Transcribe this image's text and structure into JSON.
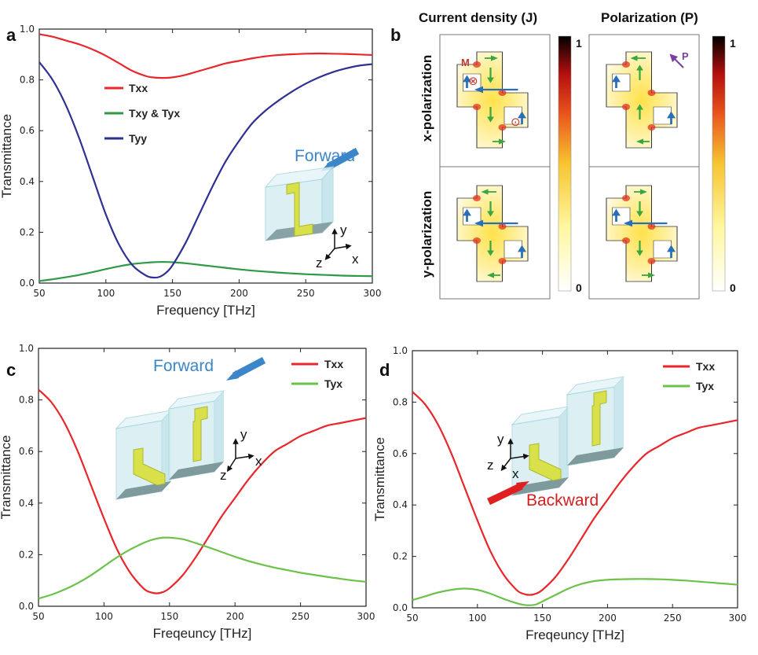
{
  "panel_labels": [
    "a",
    "b",
    "c",
    "d"
  ],
  "colors": {
    "txx": "#e8262b",
    "txy_tyx_a": "#2e9a44",
    "tyy": "#2e3192",
    "tyx_cd": "#6cc24a",
    "forward_arrow": "#3a86c8",
    "backward_arrow": "#e02020",
    "field_arrow_blue": "#2a6fb5",
    "field_arrow_green": "#3aa640",
    "marker_red": "#c0392b",
    "p_arrow": "#7b3fa0",
    "structure_yellow": "#d8e04a",
    "box_fill": "#cfe8ee"
  },
  "chart_data": [
    {
      "panel": "a",
      "type": "line",
      "xlabel": "Frequency [THz]",
      "ylabel": "Transmittance",
      "xlim": [
        50,
        300
      ],
      "ylim": [
        0,
        1.0
      ],
      "xticks": [
        "50",
        "100",
        "150",
        "200",
        "250",
        "300"
      ],
      "yticks": [
        "0.0",
        "0.2",
        "0.4",
        "0.6",
        "0.8",
        "1.0"
      ],
      "x": [
        50,
        60,
        70,
        80,
        90,
        100,
        110,
        120,
        130,
        135,
        140,
        145,
        150,
        160,
        170,
        180,
        190,
        200,
        210,
        220,
        230,
        240,
        250,
        260,
        270,
        280,
        290,
        300
      ],
      "series": [
        {
          "name": "Txx",
          "color_key": "txx",
          "values": [
            0.98,
            0.97,
            0.955,
            0.94,
            0.92,
            0.895,
            0.865,
            0.835,
            0.815,
            0.81,
            0.808,
            0.808,
            0.81,
            0.82,
            0.835,
            0.85,
            0.865,
            0.875,
            0.885,
            0.893,
            0.898,
            0.901,
            0.903,
            0.904,
            0.903,
            0.902,
            0.9,
            0.898
          ]
        },
        {
          "name": "Txy & Tyx",
          "color_key": "txy_tyx_a",
          "values": [
            0.008,
            0.015,
            0.023,
            0.032,
            0.043,
            0.055,
            0.066,
            0.075,
            0.08,
            0.082,
            0.083,
            0.083,
            0.082,
            0.078,
            0.072,
            0.066,
            0.06,
            0.054,
            0.049,
            0.045,
            0.041,
            0.038,
            0.035,
            0.033,
            0.031,
            0.029,
            0.028,
            0.027
          ]
        },
        {
          "name": "Tyy",
          "color_key": "tyy",
          "values": [
            0.87,
            0.8,
            0.7,
            0.57,
            0.42,
            0.27,
            0.15,
            0.07,
            0.03,
            0.022,
            0.024,
            0.04,
            0.07,
            0.16,
            0.27,
            0.38,
            0.48,
            0.56,
            0.63,
            0.68,
            0.72,
            0.755,
            0.785,
            0.81,
            0.83,
            0.845,
            0.856,
            0.862
          ]
        }
      ],
      "annotation": "Forward",
      "axes_letters": [
        "y",
        "z",
        "x"
      ]
    },
    {
      "panel": "c",
      "type": "line",
      "xlabel": "Freqeuncy [THz]",
      "ylabel": "Transmittance",
      "xlim": [
        50,
        300
      ],
      "ylim": [
        0,
        1.0
      ],
      "xticks": [
        "50",
        "100",
        "150",
        "200",
        "250",
        "300"
      ],
      "yticks": [
        "0.0",
        "0.2",
        "0.4",
        "0.6",
        "0.8",
        "1.0"
      ],
      "x": [
        50,
        60,
        70,
        80,
        90,
        100,
        110,
        120,
        130,
        135,
        140,
        145,
        150,
        160,
        170,
        180,
        190,
        200,
        210,
        220,
        230,
        240,
        250,
        260,
        270,
        280,
        290,
        300
      ],
      "series": [
        {
          "name": "Txx",
          "color_key": "txx",
          "values": [
            0.84,
            0.79,
            0.71,
            0.6,
            0.47,
            0.34,
            0.22,
            0.13,
            0.07,
            0.055,
            0.05,
            0.055,
            0.07,
            0.12,
            0.19,
            0.27,
            0.35,
            0.42,
            0.49,
            0.55,
            0.6,
            0.63,
            0.66,
            0.68,
            0.7,
            0.71,
            0.72,
            0.73
          ]
        },
        {
          "name": "Tyx",
          "color_key": "tyx_cd",
          "values": [
            0.03,
            0.045,
            0.065,
            0.09,
            0.12,
            0.155,
            0.19,
            0.22,
            0.245,
            0.255,
            0.262,
            0.266,
            0.266,
            0.26,
            0.245,
            0.228,
            0.21,
            0.192,
            0.176,
            0.162,
            0.15,
            0.14,
            0.13,
            0.122,
            0.114,
            0.107,
            0.1,
            0.095
          ]
        }
      ],
      "annotation": "Forward",
      "axes_letters": [
        "y",
        "z",
        "x"
      ]
    },
    {
      "panel": "d",
      "type": "line",
      "xlabel": "Freqeuncy [THz]",
      "ylabel": "Transmittance",
      "xlim": [
        50,
        300
      ],
      "ylim": [
        0,
        1.0
      ],
      "xticks": [
        "50",
        "100",
        "150",
        "200",
        "250",
        "300"
      ],
      "yticks": [
        "0.0",
        "0.2",
        "0.4",
        "0.6",
        "0.8",
        "1.0"
      ],
      "x": [
        50,
        60,
        70,
        80,
        90,
        100,
        110,
        120,
        130,
        135,
        140,
        145,
        150,
        160,
        170,
        180,
        190,
        200,
        210,
        220,
        230,
        240,
        250,
        260,
        270,
        280,
        290,
        300
      ],
      "series": [
        {
          "name": "Txx",
          "color_key": "txx",
          "values": [
            0.84,
            0.79,
            0.71,
            0.6,
            0.47,
            0.34,
            0.22,
            0.13,
            0.07,
            0.055,
            0.05,
            0.055,
            0.07,
            0.12,
            0.19,
            0.27,
            0.35,
            0.42,
            0.49,
            0.55,
            0.6,
            0.63,
            0.66,
            0.68,
            0.7,
            0.71,
            0.72,
            0.73
          ]
        },
        {
          "name": "Tyx",
          "color_key": "tyx_cd",
          "values": [
            0.03,
            0.045,
            0.06,
            0.07,
            0.075,
            0.07,
            0.055,
            0.035,
            0.018,
            0.012,
            0.01,
            0.013,
            0.025,
            0.05,
            0.075,
            0.093,
            0.104,
            0.109,
            0.111,
            0.112,
            0.112,
            0.111,
            0.109,
            0.106,
            0.102,
            0.098,
            0.094,
            0.09
          ]
        }
      ],
      "annotation": "Backward",
      "axes_letters": [
        "y",
        "z",
        "x"
      ]
    }
  ],
  "panel_b": {
    "columns": [
      "Current density (J)",
      "Polarization (P)"
    ],
    "rows": [
      "x-polarization",
      "y-polarization"
    ],
    "colorbar_max": "1",
    "colorbar_min": "0",
    "marker_m": "M",
    "marker_into": "⊗",
    "marker_out": "⊙",
    "p_label": "P"
  }
}
